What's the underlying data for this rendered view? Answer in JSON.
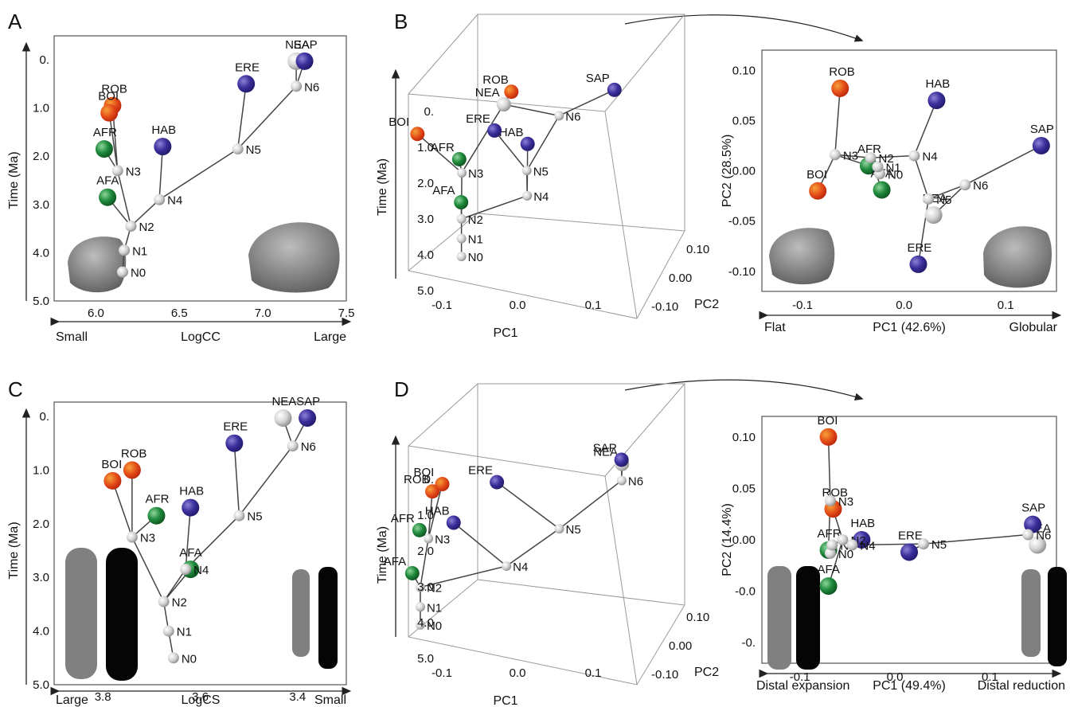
{
  "colors": {
    "ROB": "#e04a18",
    "BOI": "#e03a10",
    "AFR": "#1d8a3a",
    "AFA": "#1d8a3a",
    "HAB": "#3a2f9a",
    "ERE": "#3a2f9a",
    "NEA": "#3a2f9a",
    "SAP": "#3a2f9a",
    "node": "#d8d8d8"
  },
  "chart_data": [
    {
      "panel": "A",
      "type": "scatter",
      "subtype": "phylogenetic tree",
      "ylabel": "Time (Ma)",
      "xlabel": "LogCC",
      "x_left": "Small",
      "x_right": "Large",
      "xlim": [
        5.75,
        7.5
      ],
      "ylim": [
        0,
        5
      ],
      "xticks": [
        "6.0",
        "6.5",
        "7.0",
        "7.5"
      ],
      "yticks": [
        "0.",
        "1.0",
        "2.0",
        "3.0",
        "4.0",
        "5.0"
      ],
      "points": [
        {
          "label": "ROB",
          "x": 6.1,
          "y": 0.95,
          "tip": true
        },
        {
          "label": "BOI",
          "x": 6.08,
          "y": 1.1,
          "tip": true
        },
        {
          "label": "AFR",
          "x": 6.05,
          "y": 1.85,
          "tip": true
        },
        {
          "label": "AFA",
          "x": 6.07,
          "y": 2.85,
          "tip": true
        },
        {
          "label": "HAB",
          "x": 6.4,
          "y": 1.8,
          "tip": true
        },
        {
          "label": "ERE",
          "x": 6.9,
          "y": 0.5,
          "tip": true
        },
        {
          "label": "NEA",
          "x": 7.2,
          "y": 0.03,
          "tip": true
        },
        {
          "label": "SAP",
          "x": 7.25,
          "y": 0.03,
          "tip": true
        },
        {
          "label": "N0",
          "x": 6.16,
          "y": 4.4
        },
        {
          "label": "N1",
          "x": 6.17,
          "y": 3.95
        },
        {
          "label": "N2",
          "x": 6.21,
          "y": 3.45
        },
        {
          "label": "N3",
          "x": 6.13,
          "y": 2.3
        },
        {
          "label": "N4",
          "x": 6.38,
          "y": 2.9
        },
        {
          "label": "N5",
          "x": 6.85,
          "y": 1.85
        },
        {
          "label": "N6",
          "x": 7.2,
          "y": 0.55
        }
      ]
    },
    {
      "panel": "B-3D",
      "type": "scatter",
      "subtype": "3D phylogenetic tree",
      "ylabel": "Time (Ma)",
      "xlabel": "PC1",
      "zlabel": "PC2",
      "yticks": [
        "0.",
        "1.0",
        "2.0",
        "3.0",
        "4.0",
        "5.0"
      ],
      "xticks": [
        "-0.1",
        "0.0",
        "0.1"
      ],
      "zticks": [
        "0.10",
        "0.00",
        "-0.10"
      ],
      "points": [
        {
          "label": "ROB",
          "x": 0.01,
          "pc2": 0.08,
          "y": 0.4,
          "tip": true
        },
        {
          "label": "BOI",
          "x": -0.07,
          "pc2": -0.02,
          "y": 1.0,
          "tip": true
        },
        {
          "label": "AFR",
          "x": -0.03,
          "pc2": 0.005,
          "y": 1.85,
          "tip": true
        },
        {
          "label": "AFA",
          "x": -0.02,
          "pc2": -0.03,
          "y": 2.85,
          "tip": true
        },
        {
          "label": "HAB",
          "x": 0.03,
          "pc2": 0.07,
          "y": 1.8,
          "tip": true
        },
        {
          "label": "ERE",
          "x": 0.03,
          "pc2": -0.09,
          "y": 0.5,
          "tip": true
        },
        {
          "label": "NEA",
          "x": 0.03,
          "pc2": -0.045,
          "y": 0.03,
          "tip": true
        },
        {
          "label": "SAP",
          "x": 0.135,
          "pc2": 0.025,
          "y": 0.03,
          "tip": true
        },
        {
          "label": "N0"
        },
        {
          "label": "N1"
        },
        {
          "label": "N2"
        },
        {
          "label": "N3"
        },
        {
          "label": "N4"
        },
        {
          "label": "N5"
        },
        {
          "label": "N6"
        }
      ]
    },
    {
      "panel": "B",
      "type": "scatter",
      "subtype": "phylomorphospace",
      "xlabel": "PC1 (42.6%)",
      "ylabel": "PC2 (28.5%)",
      "x_left": "Flat",
      "x_right": "Globular",
      "xlim": [
        -0.14,
        0.15
      ],
      "ylim": [
        -0.12,
        0.12
      ],
      "xticks": [
        "-0.1",
        "0.0",
        "0.1"
      ],
      "yticks": [
        "0.10",
        "0.05",
        "0.00",
        "-0.05",
        "-0.10"
      ],
      "points": [
        {
          "label": "ROB",
          "x": -0.063,
          "y": 0.082,
          "tip": true
        },
        {
          "label": "BOI",
          "x": -0.085,
          "y": -0.02,
          "tip": true
        },
        {
          "label": "AFR",
          "x": -0.035,
          "y": 0.005,
          "tip": true
        },
        {
          "label": "AFA",
          "x": -0.022,
          "y": -0.019,
          "tip": true
        },
        {
          "label": "HAB",
          "x": 0.032,
          "y": 0.07,
          "tip": true
        },
        {
          "label": "ERE",
          "x": 0.014,
          "y": -0.093,
          "tip": true
        },
        {
          "label": "NEA",
          "x": 0.029,
          "y": -0.044,
          "tip": true
        },
        {
          "label": "SAP",
          "x": 0.135,
          "y": 0.025,
          "tip": true
        },
        {
          "label": "N0",
          "x": -0.024,
          "y": -0.003
        },
        {
          "label": "N1",
          "x": -0.026,
          "y": 0.004
        },
        {
          "label": "N2",
          "x": -0.033,
          "y": 0.013
        },
        {
          "label": "N3",
          "x": -0.068,
          "y": 0.016
        },
        {
          "label": "N4",
          "x": 0.01,
          "y": 0.015
        },
        {
          "label": "N5",
          "x": 0.024,
          "y": -0.028
        },
        {
          "label": "N6",
          "x": 0.06,
          "y": -0.014
        }
      ]
    },
    {
      "panel": "C",
      "type": "scatter",
      "subtype": "phylogenetic tree",
      "ylabel": "Time (Ma)",
      "xlabel": "LogCS",
      "x_left": "Large",
      "x_right": "Small",
      "xlim": [
        3.9,
        3.3
      ],
      "ylim": [
        0,
        5
      ],
      "xticks": [
        "3.8",
        "3.6",
        "3.4"
      ],
      "yticks": [
        "0.",
        "1.0",
        "2.0",
        "3.0",
        "4.0",
        "5.0"
      ],
      "points": [
        {
          "label": "BOI",
          "x": 3.78,
          "y": 1.2,
          "tip": true
        },
        {
          "label": "ROB",
          "x": 3.74,
          "y": 1.0,
          "tip": true
        },
        {
          "label": "AFR",
          "x": 3.69,
          "y": 1.85,
          "tip": true
        },
        {
          "label": "AFA",
          "x": 3.62,
          "y": 2.85,
          "tip": true
        },
        {
          "label": "HAB",
          "x": 3.62,
          "y": 1.7,
          "tip": true
        },
        {
          "label": "ERE",
          "x": 3.53,
          "y": 0.5,
          "tip": true
        },
        {
          "label": "NEA",
          "x": 3.43,
          "y": 0.03,
          "tip": true
        },
        {
          "label": "SAP",
          "x": 3.38,
          "y": 0.03,
          "tip": true
        },
        {
          "label": "N0",
          "x": 3.655,
          "y": 4.5
        },
        {
          "label": "N1",
          "x": 3.665,
          "y": 4.0
        },
        {
          "label": "N2",
          "x": 3.675,
          "y": 3.45
        },
        {
          "label": "N3",
          "x": 3.74,
          "y": 2.25
        },
        {
          "label": "N4",
          "x": 3.63,
          "y": 2.85
        },
        {
          "label": "N5",
          "x": 3.52,
          "y": 1.85
        },
        {
          "label": "N6",
          "x": 3.41,
          "y": 0.55
        }
      ]
    },
    {
      "panel": "D-3D",
      "type": "scatter",
      "subtype": "3D phylogenetic tree",
      "ylabel": "Time (Ma)",
      "xlabel": "PC1",
      "zlabel": "PC2",
      "yticks": [
        "0.",
        "1.0",
        "2.0",
        "3.0",
        "4.0",
        "5.0"
      ],
      "xticks": [
        "-0.1",
        "0.0",
        "0.1"
      ],
      "zticks": [
        "0.10",
        "0.00",
        "-0.10"
      ],
      "points": [
        {
          "label": "ROB",
          "x": -0.065,
          "pc2": 0.03,
          "y": 1.0,
          "tip": true
        },
        {
          "label": "BOI",
          "x": -0.07,
          "pc2": 0.1,
          "y": 1.2,
          "tip": true
        },
        {
          "label": "AFR",
          "x": -0.07,
          "pc2": -0.01,
          "y": 1.85,
          "tip": true
        },
        {
          "label": "AFA",
          "x": -0.07,
          "pc2": -0.045,
          "y": 2.85,
          "tip": true
        },
        {
          "label": "HAB",
          "x": -0.035,
          "pc2": 0.0,
          "y": 1.7,
          "tip": true
        },
        {
          "label": "ERE",
          "x": 0.015,
          "pc2": -0.012,
          "y": 0.5,
          "tip": true
        },
        {
          "label": "NEA",
          "x": 0.15,
          "pc2": -0.005,
          "y": 0.03,
          "tip": true
        },
        {
          "label": "SAP",
          "x": 0.145,
          "pc2": 0.015,
          "y": 0.03,
          "tip": true
        },
        {
          "label": "N0"
        },
        {
          "label": "N1"
        },
        {
          "label": "N2"
        },
        {
          "label": "N3"
        },
        {
          "label": "N4"
        },
        {
          "label": "N5"
        },
        {
          "label": "N6"
        }
      ]
    },
    {
      "panel": "D",
      "type": "scatter",
      "subtype": "phylomorphospace",
      "xlabel": "PC1 (49.4%)",
      "ylabel": "PC2 (14.4%)",
      "x_left": "Distal expansion",
      "x_right": "Distal reduction",
      "xlim": [
        -0.14,
        0.17
      ],
      "ylim": [
        -0.12,
        0.12
      ],
      "xticks": [
        "-0.1",
        "0.0",
        "0.1"
      ],
      "yticks": [
        "0.10",
        "0.05",
        "0.00",
        "-0.0",
        "-0."
      ],
      "points": [
        {
          "label": "BOI",
          "x": -0.07,
          "y": 0.1,
          "tip": true
        },
        {
          "label": "ROB",
          "x": -0.065,
          "y": 0.03,
          "tip": true
        },
        {
          "label": "AFR",
          "x": -0.07,
          "y": -0.01,
          "tip": true
        },
        {
          "label": "AFA",
          "x": -0.07,
          "y": -0.045,
          "tip": true
        },
        {
          "label": "HAB",
          "x": -0.035,
          "y": 0.0,
          "tip": true
        },
        {
          "label": "ERE",
          "x": 0.015,
          "y": -0.012,
          "tip": true
        },
        {
          "label": "NEA",
          "x": 0.15,
          "y": -0.005,
          "tip": true
        },
        {
          "label": "SAP",
          "x": 0.145,
          "y": 0.015,
          "tip": true
        },
        {
          "label": "N0",
          "x": -0.068,
          "y": -0.013
        },
        {
          "label": "N1",
          "x": -0.066,
          "y": -0.005
        },
        {
          "label": "N2",
          "x": -0.055,
          "y": 0.0
        },
        {
          "label": "N3",
          "x": -0.068,
          "y": 0.038
        },
        {
          "label": "N4",
          "x": -0.045,
          "y": -0.005
        },
        {
          "label": "N5",
          "x": 0.03,
          "y": -0.004
        },
        {
          "label": "N6",
          "x": 0.14,
          "y": 0.005
        }
      ]
    }
  ]
}
